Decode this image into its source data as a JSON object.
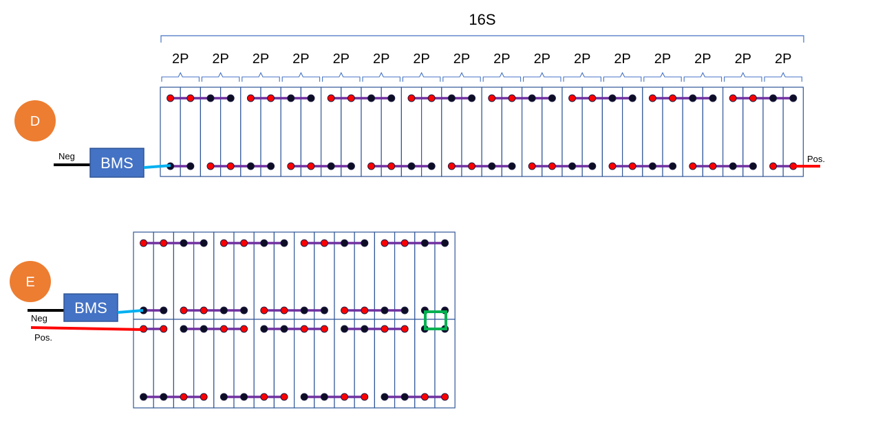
{
  "diagram_d": {
    "marker": "D",
    "series_label": "16S",
    "group_labels": [
      "2P",
      "2P",
      "2P",
      "2P",
      "2P",
      "2P",
      "2P",
      "2P",
      "2P",
      "2P",
      "2P",
      "2P",
      "2P",
      "2P",
      "2P",
      "2P"
    ],
    "bms_label": "BMS",
    "neg_label": "Neg",
    "pos_label": "Pos."
  },
  "diagram_e": {
    "marker": "E",
    "bms_label": "BMS",
    "neg_label": "Neg",
    "pos_label": "Pos."
  },
  "colors": {
    "cell_border": "#2f5597",
    "strap": "#7030a0",
    "terminal_pos": "#ff0000",
    "terminal_neg": "#0d0d26",
    "bms_fill": "#4472c4",
    "marker_fill": "#ed7d31",
    "lead_neg": "#000000",
    "lead_pos": "#ff0000",
    "lead_bms": "#00b0f0",
    "jumper": "#00b050",
    "brace": "#4472c4"
  }
}
